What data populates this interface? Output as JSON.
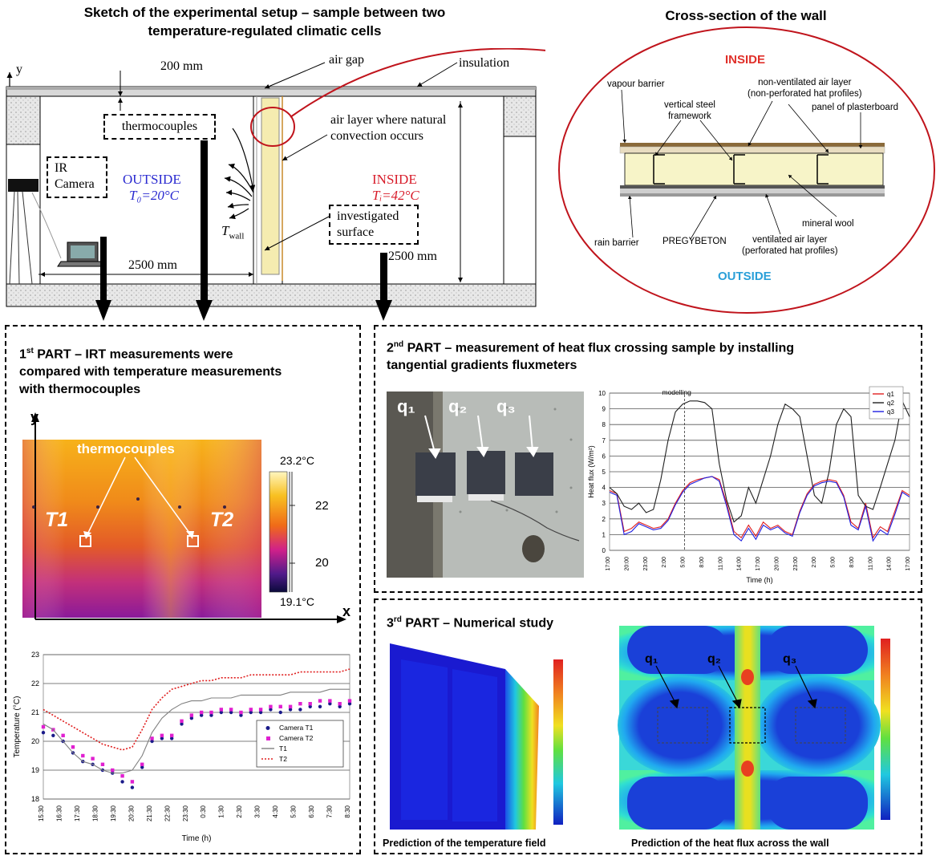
{
  "header": {
    "setup_title_line1": "Sketch of the experimental setup – sample between two",
    "setup_title_line2": "temperature-regulated climatic cells",
    "wall_title": "Cross-section of the wall"
  },
  "setup": {
    "axis_y": "y",
    "dim_top": "200 mm",
    "air_gap": "air gap",
    "insulation": "insulation",
    "thermocouples": "thermocouples",
    "natural_conv_line1": "air layer where natural",
    "natural_conv_line2": "convection occurs",
    "ir_camera_line1": "IR",
    "ir_camera_line2": "Camera",
    "outside_label": "OUTSIDE",
    "outside_temp": "T₀=20°C",
    "inside_label": "INSIDE",
    "inside_temp": "Tᵢ=42°C",
    "investigated_line1": "investigated",
    "investigated_line2": "surface",
    "twall": "T",
    "twall_sub": "wall",
    "dim_width": "2500 mm",
    "dim_height": "2500 mm"
  },
  "wall": {
    "inside": "INSIDE",
    "outside": "OUTSIDE",
    "vapour_barrier": "vapour barrier",
    "non_vent_line1": "non-ventilated air layer",
    "non_vent_line2": "(non-perforated  hat profiles)",
    "steel_line1": "vertical steel",
    "steel_line2": "framework",
    "plasterboard": "panel of plasterboard",
    "mineral_wool": "mineral wool",
    "rain_barrier": "rain barrier",
    "pregybeton": "PREGYBETON",
    "vent_line1": "ventilated air layer",
    "vent_line2": "(perforated  hat profiles)"
  },
  "part1": {
    "sup": "st",
    "num": "1",
    "title_line1": " PART – IRT measurements were",
    "title_line2": "compared with temperature measurements",
    "title_line3": "with thermocouples",
    "ir_axis_y": "y",
    "ir_axis_x": "x",
    "ir_thermocouples": "thermocouples",
    "t1": "T1",
    "t2": "T2",
    "scale_max": "23.2°C",
    "scale_22": "22",
    "scale_20": "20",
    "scale_min": "19.1°C",
    "colors": {
      "hot": "#f7b21a",
      "mid": "#e86020",
      "cold": "#8a1a8a"
    }
  },
  "part2": {
    "sup": "nd",
    "num": "2",
    "title_line1": " PART –  measurement of heat flux crossing sample by installing",
    "title_line2": "tangential gradients fluxmeters",
    "photo_labels": [
      "q₁",
      "q₂",
      "q₃"
    ]
  },
  "part3": {
    "sup": "rd",
    "num": "3",
    "title_line1": " PART – Numerical study",
    "caption_left": "Prediction of the temperature field",
    "caption_right": "Prediction of the heat flux across  the wall",
    "labels": [
      "q₁",
      "q₂",
      "q₃"
    ]
  },
  "chart_data": [
    {
      "type": "line",
      "xlabel": "Time (h)",
      "ylabel": "Temperature (°C)",
      "ylim": [
        18,
        23
      ],
      "yticks": [
        "18",
        "19",
        "20",
        "21",
        "22",
        "23"
      ],
      "xticks": [
        "15:30",
        "16:30",
        "17:30",
        "18:30",
        "19:30",
        "20:30",
        "21:30",
        "22:30",
        "23:30",
        "0:30",
        "1:30",
        "2:30",
        "3:30",
        "4:30",
        "5:30",
        "6:30",
        "7:30",
        "8:30"
      ],
      "grid": true,
      "legend_position": "bottom-right",
      "series": [
        {
          "name": "Camera T1",
          "style": "markers",
          "color": "#1a1a8a",
          "values": [
            20.3,
            20.2,
            20.0,
            19.6,
            19.3,
            19.2,
            19.0,
            18.9,
            18.6,
            18.4,
            19.1,
            20.0,
            20.1,
            20.1,
            20.6,
            20.8,
            20.9,
            20.9,
            21.0,
            21.0,
            20.9,
            21.0,
            21.0,
            21.1,
            21.0,
            21.1,
            21.1,
            21.2,
            21.2,
            21.3,
            21.2,
            21.3
          ]
        },
        {
          "name": "Camera T2",
          "style": "markers",
          "color": "#e020d0",
          "values": [
            20.5,
            20.4,
            20.2,
            19.8,
            19.5,
            19.4,
            19.2,
            19.0,
            18.8,
            18.6,
            19.2,
            20.1,
            20.2,
            20.2,
            20.7,
            20.9,
            21.0,
            21.0,
            21.1,
            21.1,
            21.0,
            21.1,
            21.1,
            21.2,
            21.2,
            21.2,
            21.3,
            21.3,
            21.4,
            21.4,
            21.3,
            21.4
          ]
        },
        {
          "name": "T1",
          "style": "solid",
          "color": "#808080",
          "values": [
            20.6,
            20.4,
            20.0,
            19.6,
            19.3,
            19.2,
            19.0,
            18.9,
            18.9,
            19.0,
            19.5,
            20.3,
            20.8,
            21.1,
            21.3,
            21.4,
            21.4,
            21.5,
            21.5,
            21.5,
            21.6,
            21.6,
            21.6,
            21.6,
            21.6,
            21.7,
            21.7,
            21.7,
            21.7,
            21.8,
            21.8,
            21.8
          ]
        },
        {
          "name": "T2",
          "style": "dotted",
          "color": "#e02020",
          "values": [
            21.1,
            20.9,
            20.7,
            20.5,
            20.3,
            20.1,
            19.9,
            19.8,
            19.7,
            19.8,
            20.4,
            21.1,
            21.5,
            21.8,
            21.9,
            22.0,
            22.1,
            22.1,
            22.2,
            22.2,
            22.2,
            22.3,
            22.3,
            22.3,
            22.3,
            22.3,
            22.4,
            22.4,
            22.4,
            22.4,
            22.4,
            22.5
          ]
        }
      ]
    },
    {
      "type": "line",
      "xlabel": "Time (h)",
      "ylabel": "Heat flux (W/m²)",
      "ylim": [
        0,
        10
      ],
      "yticks": [
        "0",
        "1",
        "2",
        "3",
        "4",
        "5",
        "6",
        "7",
        "8",
        "9",
        "10"
      ],
      "xticks": [
        "17:00",
        "20:00",
        "23:00",
        "2:00",
        "5:00",
        "8:00",
        "11:00",
        "14:00",
        "17:00",
        "20:00",
        "23:00",
        "2:00",
        "5:00",
        "8:00",
        "11:00",
        "14:00",
        "17:00"
      ],
      "annotation": "modelling",
      "grid": true,
      "legend_position": "top-right",
      "series": [
        {
          "name": "q1",
          "color": "#e02020",
          "values": [
            3.8,
            3.6,
            1.2,
            1.4,
            1.8,
            1.6,
            1.4,
            1.5,
            2.0,
            3.0,
            3.8,
            4.3,
            4.5,
            4.6,
            4.7,
            4.5,
            3.0,
            1.2,
            0.8,
            1.6,
            0.9,
            1.8,
            1.4,
            1.6,
            1.2,
            1.0,
            2.5,
            3.6,
            4.2,
            4.4,
            4.5,
            4.4,
            3.5,
            1.8,
            1.4,
            3.0,
            0.8,
            1.5,
            1.2,
            2.5,
            3.8,
            3.5
          ]
        },
        {
          "name": "q2",
          "color": "#202020",
          "values": [
            4.0,
            3.6,
            2.8,
            2.6,
            3.0,
            2.4,
            2.6,
            4.5,
            7.0,
            8.8,
            9.3,
            9.5,
            9.5,
            9.4,
            9.0,
            5.5,
            3.2,
            1.8,
            2.2,
            4.0,
            3.0,
            4.5,
            6.0,
            8.0,
            9.3,
            9.0,
            8.5,
            6.0,
            3.5,
            3.0,
            5.0,
            8.0,
            9.0,
            8.5,
            3.5,
            2.8,
            2.6,
            4.0,
            5.5,
            7.0,
            9.5,
            8.5
          ]
        },
        {
          "name": "q3",
          "color": "#2020e0",
          "values": [
            3.7,
            3.5,
            1.0,
            1.2,
            1.7,
            1.5,
            1.3,
            1.4,
            1.9,
            2.9,
            3.7,
            4.2,
            4.4,
            4.6,
            4.7,
            4.4,
            2.8,
            1.0,
            0.6,
            1.4,
            0.7,
            1.6,
            1.3,
            1.5,
            1.1,
            0.9,
            2.4,
            3.5,
            4.1,
            4.3,
            4.4,
            4.3,
            3.4,
            1.6,
            1.3,
            2.8,
            0.6,
            1.3,
            1.0,
            2.3,
            3.7,
            3.4
          ]
        }
      ]
    }
  ]
}
